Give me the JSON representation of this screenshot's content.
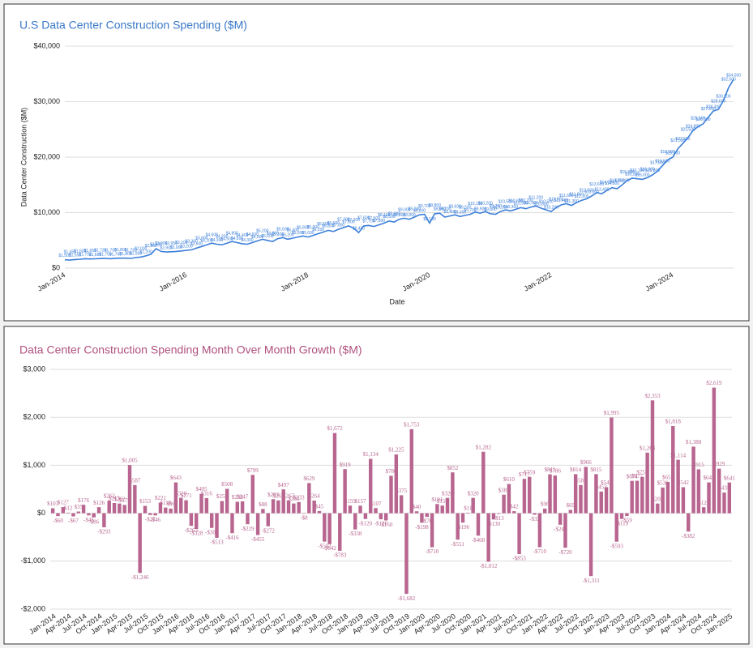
{
  "chart_data": [
    {
      "type": "line",
      "title": "U.S Data Center Construction Spending ($M)",
      "x_label": "Date",
      "y_label": "Data Center Construction ($M)",
      "color": "#3c7fd9",
      "grid": true,
      "ylim": [
        0,
        40000
      ],
      "yticks": [
        {
          "value": 0,
          "label": "$0"
        },
        {
          "value": 10000,
          "label": "$10,000"
        },
        {
          "value": 20000,
          "label": "$20,000"
        },
        {
          "value": 30000,
          "label": "$30,000"
        },
        {
          "value": 40000,
          "label": "$40,000"
        }
      ],
      "categories": [
        "Jan-2014",
        null,
        null,
        null,
        null,
        null,
        null,
        null,
        null,
        null,
        null,
        null,
        null,
        null,
        null,
        null,
        null,
        null,
        null,
        null,
        null,
        null,
        null,
        null,
        "Jan-2016",
        null,
        null,
        null,
        null,
        null,
        null,
        null,
        null,
        null,
        null,
        null,
        null,
        null,
        null,
        null,
        null,
        null,
        null,
        null,
        null,
        null,
        null,
        null,
        "Jan-2018",
        null,
        null,
        null,
        null,
        null,
        null,
        null,
        null,
        null,
        null,
        null,
        null,
        null,
        null,
        null,
        null,
        null,
        null,
        null,
        null,
        null,
        null,
        null,
        "Jan-2020",
        null,
        null,
        null,
        null,
        null,
        null,
        null,
        null,
        null,
        null,
        null,
        null,
        null,
        null,
        null,
        null,
        null,
        null,
        null,
        null,
        null,
        null,
        null,
        "Jan-2022",
        null,
        null,
        null,
        null,
        null,
        null,
        null,
        null,
        null,
        null,
        null,
        null,
        null,
        null,
        null,
        null,
        null,
        null,
        null,
        null,
        null,
        null,
        null,
        "Jan-2024",
        null,
        null,
        null,
        null,
        null,
        null,
        null,
        null,
        null,
        null,
        null,
        null
      ],
      "values": [
        1500,
        1450,
        1550,
        1600,
        1700,
        1650,
        1680,
        1720,
        1750,
        1700,
        1760,
        1800,
        1800,
        1750,
        1900,
        2000,
        2200,
        2500,
        3500,
        3000,
        2900,
        2950,
        3000,
        3100,
        3200,
        3300,
        3600,
        3900,
        4200,
        4500,
        4300,
        4200,
        4500,
        4800,
        4600,
        4400,
        4300,
        4600,
        4900,
        5200,
        5000,
        4800,
        5300,
        5500,
        5200,
        5400,
        5600,
        5800,
        5600,
        5900,
        6200,
        6500,
        6800,
        6600,
        7000,
        7300,
        7600,
        7200,
        6400,
        7600,
        7700,
        7500,
        7800,
        8100,
        8500,
        8300,
        8800,
        9000,
        8800,
        9200,
        9600,
        9700,
        8100,
        9800,
        9900,
        9200,
        9400,
        9600,
        9300,
        9500,
        9700,
        10100,
        9900,
        10200,
        9800,
        9700,
        10200,
        10500,
        10300,
        10600,
        10900,
        10700,
        11000,
        11200,
        10800,
        10500,
        10200,
        10900,
        11400,
        11600,
        11300,
        11800,
        12200,
        12500,
        13000,
        13600,
        13400,
        14000,
        14500,
        14300,
        15000,
        15800,
        16200,
        16100,
        16000,
        16300,
        16800,
        17500,
        18500,
        19500,
        20000,
        21500,
        22500,
        23500,
        24800,
        25500,
        26000,
        27200,
        28300,
        28600,
        30200,
        32500,
        34000
      ],
      "value_labels": [
        "$1,500",
        "$1,450",
        "$1,550",
        "$1,600",
        "$1,700",
        "$1,650",
        "$1,680",
        "$1,720",
        "$1,750",
        "$1,700",
        "$1,760",
        "$1,800",
        "$1,800",
        "$1,750",
        "$1,900",
        "$2,000",
        "$2,200",
        "$2,500",
        "$3,500",
        "$3,000",
        "$2,900",
        "$2,950",
        "$3,000",
        "$3,100",
        "$3,200",
        "$3,300",
        "$3,600",
        "$3,900",
        "$4,200",
        "$4,500",
        "$4,300",
        "$4,200",
        "$4,500",
        "$4,800",
        "$4,600",
        "$4,400",
        "$4,300",
        "$4,600",
        "$4,900",
        "$5,200",
        "$5,000",
        "$4,800",
        "$5,300",
        "$5,500",
        "$5,200",
        "$5,400",
        "$5,600",
        "$5,800",
        "$5,600",
        "$5,900",
        "$6,200",
        "$6,500",
        "$6,800",
        "$6,600",
        "$7,000",
        "$7,300",
        "$7,600",
        "$7,200",
        "$6,400",
        "$7,600",
        "$7,700",
        "$7,500",
        "$7,800",
        "$8,100",
        "$8,500",
        "$8,300",
        "$8,800",
        "$9,000",
        "$8,800",
        "$9,200",
        "$9,600",
        "$9,700",
        "$8,100",
        "$9,800",
        "$9,900",
        "$9,200",
        "$9,400",
        "$9,600",
        "$9,300",
        "$9,500",
        "$9,700",
        "$10,100",
        "$9,900",
        "$10,200",
        "$9,800",
        "$9,700",
        "$10,200",
        "$10,500",
        "$10,300",
        "$10,600",
        "$10,900",
        "$10,700",
        "$11,000",
        "$11,200",
        "$10,800",
        "$10,500",
        "$10,200",
        "$10,900",
        "$11,400",
        "$11,600",
        "$11,300",
        "$11,800",
        "$12,200",
        "$12,500",
        "$13,000",
        "$13,600",
        "$13,400",
        "$14,000",
        "$14,500",
        "$14,300",
        "$15,000",
        "$15,800",
        "$16,200",
        "$16,100",
        "$16,000",
        "$16,300",
        "$16,800",
        "$17,500",
        "$18,500",
        "$19,500",
        "$20,000",
        "$21,500",
        "$22,500",
        "$23,500",
        "$24,800",
        "$25,500",
        "$26,000",
        "$27,200",
        "$28,300",
        "$28,600",
        "$30,200",
        "$32,500",
        "$34,000"
      ]
    },
    {
      "type": "bar",
      "title": "Data Center Construction Spending Month Over Month Growth ($M)",
      "color": "#b8658f",
      "grid": true,
      "ylim": [
        -2000,
        3000
      ],
      "yticks": [
        {
          "value": -2000,
          "label": "-$2,000"
        },
        {
          "value": -1000,
          "label": "-$1,000"
        },
        {
          "value": 0,
          "label": "$0"
        },
        {
          "value": 1000,
          "label": "$1,000"
        },
        {
          "value": 2000,
          "label": "$2,000"
        },
        {
          "value": 3000,
          "label": "$3,000"
        }
      ],
      "categories": [
        "Jan-2014",
        null,
        null,
        "Apr-2014",
        null,
        null,
        "Jul-2014",
        null,
        null,
        "Oct-2014",
        null,
        null,
        "Jan-2015",
        null,
        null,
        "Apr-2015",
        null,
        null,
        "Jul-2015",
        null,
        null,
        "Oct-2015",
        null,
        null,
        "Jan-2016",
        null,
        null,
        "Apr-2016",
        null,
        null,
        "Jul-2016",
        null,
        null,
        "Oct-2016",
        null,
        null,
        "Jan-2017",
        null,
        null,
        "Apr-2017",
        null,
        null,
        "Jul-2017",
        null,
        null,
        "Oct-2017",
        null,
        null,
        "Jan-2018",
        null,
        null,
        "Apr-2018",
        null,
        null,
        "Jul-2018",
        null,
        null,
        "Oct-2018",
        null,
        null,
        "Jan-2019",
        null,
        null,
        "Apr-2019",
        null,
        null,
        "Jul-2019",
        null,
        null,
        "Oct-2019",
        null,
        null,
        "Jan-2020",
        null,
        null,
        "Apr-2020",
        null,
        null,
        "Jul-2020",
        null,
        null,
        "Oct-2020",
        null,
        null,
        "Jan-2021",
        null,
        null,
        "Apr-2021",
        null,
        null,
        "Jul-2021",
        null,
        null,
        "Oct-2021",
        null,
        null,
        "Jan-2022",
        null,
        null,
        "Apr-2022",
        null,
        null,
        "Jul-2022",
        null,
        null,
        "Oct-2022",
        null,
        null,
        "Jan-2023",
        null,
        null,
        "Apr-2023",
        null,
        null,
        "Jul-2023",
        null,
        null,
        "Oct-2023",
        null,
        null,
        "Jan-2024",
        null,
        null,
        "Apr-2024",
        null,
        null,
        "Jul-2024",
        null,
        null,
        "Oct-2024",
        null,
        null,
        "Jan-2025"
      ],
      "values": [
        103,
        -60,
        127,
        12,
        -67,
        35,
        176,
        -45,
        -86,
        126,
        -293,
        262,
        213,
        202,
        173,
        1005,
        587,
        -1246,
        153,
        -37,
        -46,
        221,
        118,
        96,
        643,
        320,
        271,
        -263,
        -328,
        405,
        316,
        -307,
        -513,
        253,
        508,
        -416,
        238,
        247,
        -229,
        799,
        -455,
        88,
        -272,
        293,
        267,
        497,
        267,
        203,
        233,
        -8,
        629,
        264,
        45,
        -592,
        -642,
        1672,
        -783,
        919,
        159,
        -338,
        157,
        -120,
        1134,
        107,
        -126,
        -150,
        780,
        1225,
        375,
        -1682,
        1753,
        40,
        -198,
        -76,
        -710,
        191,
        159,
        320,
        852,
        -551,
        -196,
        11,
        320,
        -468,
        1282,
        -1012,
        -130,
        -13,
        387,
        610,
        42,
        -853,
        717,
        759,
        -32,
        -710,
        96,
        811,
        786,
        -240,
        -720,
        69,
        814,
        587,
        966,
        -1311,
        815,
        452,
        542,
        1995,
        -593,
        -119,
        -59,
        674,
        677,
        757,
        1263,
        2353,
        202,
        536,
        653,
        1818,
        1114,
        542,
        -382,
        1388,
        915,
        125,
        642,
        2619,
        929,
        431,
        641
      ],
      "value_labels": [
        "$103",
        "-$60",
        "$127",
        "$12",
        "-$67",
        "$35",
        "$176",
        "-$45",
        "-$86",
        "$126",
        "-$293",
        "$262",
        "$213",
        "$202",
        "$173",
        "$1,005",
        "$587",
        "-$1,246",
        "$153",
        "-$37",
        "-$46",
        "$221",
        "$118",
        "$96",
        "$643",
        "$320",
        "$271",
        "-$263",
        "-$328",
        "$405",
        "$316",
        "-$307",
        "-$513",
        "$253",
        "$508",
        "-$416",
        "$238",
        "$247",
        "-$229",
        "$799",
        "-$455",
        "$88",
        "-$272",
        "$293",
        "$267",
        "$497",
        "$267",
        "$203",
        "$233",
        "-$8",
        "$629",
        "$264",
        "$45",
        "-$592",
        "-$642",
        "$1,672",
        "-$783",
        "$919",
        "$159",
        "-$338",
        "$157",
        "-$120",
        "$1,134",
        "$107",
        "-$126",
        "-$150",
        "$780",
        "$1,225",
        "$375",
        "-$1,682",
        "$1,753",
        "$40",
        "-$198",
        "-$76",
        "-$710",
        "$191",
        "$159",
        "$320",
        "$852",
        "-$551",
        "-$196",
        "$11",
        "$320",
        "-$468",
        "$1,282",
        "-$1,012",
        "-$130",
        "-$13",
        "$387",
        "$610",
        "$42",
        "-$853",
        "$717",
        "$759",
        "-$32",
        "-$710",
        "$96",
        "$811",
        "$786",
        "-$240",
        "-$720",
        "$69",
        "$814",
        "$587",
        "$966",
        "-$1,311",
        "$815",
        "$452",
        "$542",
        "$1,995",
        "-$593",
        "-$119",
        "-$59",
        "$674",
        "$677",
        "$757",
        "$1,263",
        "$2,353",
        "$202",
        "$536",
        "$653",
        "$1,818",
        "$1,114",
        "$542",
        "-$382",
        "$1,388",
        "$915",
        "$125",
        "$642",
        "$2,619",
        "$929",
        "$431",
        "$641"
      ]
    }
  ]
}
